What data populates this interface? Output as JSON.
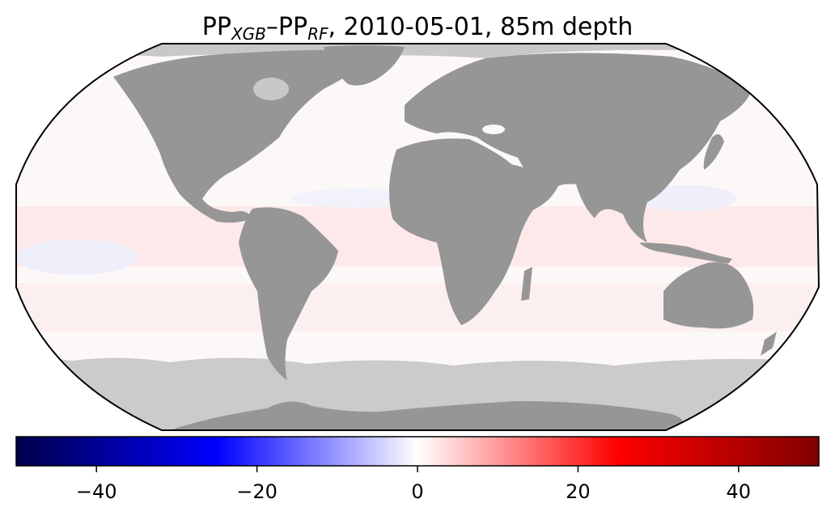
{
  "title": {
    "prefix": "PP",
    "sub1": "XGB",
    "dash": "–PP",
    "sub2": "RF",
    "suffix": ", 2010-05-01, 85m depth"
  },
  "colorbar": {
    "colormap": "seismic",
    "vmin": -50,
    "vmax": 50,
    "ticks": [
      -40,
      -20,
      0,
      20,
      40
    ],
    "tick_labels": [
      "−40",
      "−20",
      "0",
      "20",
      "40"
    ],
    "stops": [
      "#00004c",
      "#0000ff",
      "#ffffff",
      "#ff0000",
      "#800000"
    ]
  },
  "map": {
    "projection": "Robinson",
    "land_color": "#969696",
    "no_data_color": "#c8c8c8",
    "ocean_color": "#fbf6f6",
    "boundary_color": "#000000"
  }
}
